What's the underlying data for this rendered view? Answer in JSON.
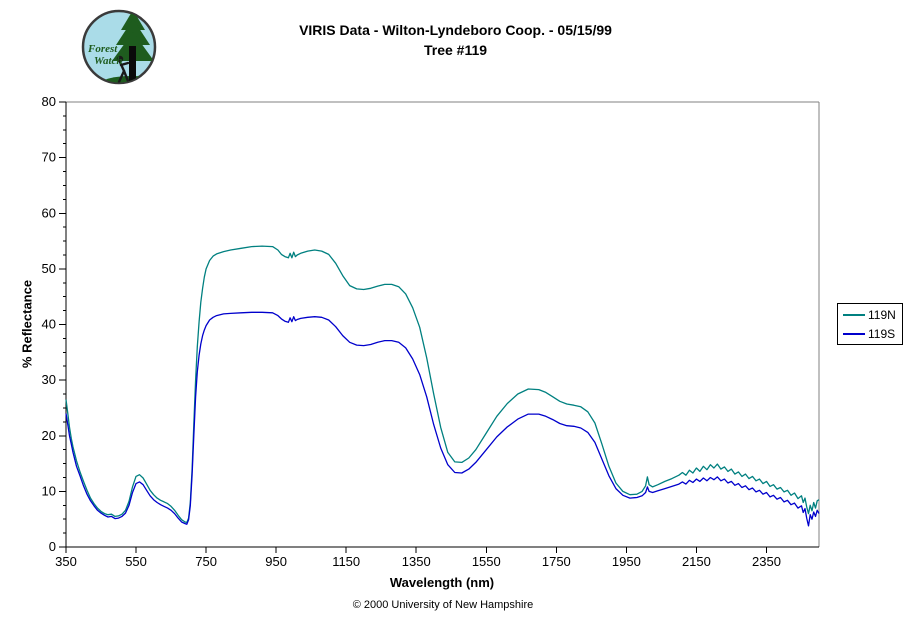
{
  "header": {
    "title_line1": "VIRIS Data - Wilton-Lyndeboro Coop. - 05/15/99",
    "title_line2": "Tree #119",
    "logo": {
      "line1": "Forest",
      "line2": "Watch"
    }
  },
  "footer": {
    "copyright": "© 2000 University of New Hampshire"
  },
  "chart_data": {
    "type": "line",
    "title": "VIRIS Data - Wilton-Lyndeboro Coop. - 05/15/99 — Tree #119",
    "xlabel": "Wavelength (nm)",
    "ylabel": "% Reflectance",
    "xlim": [
      350,
      2500
    ],
    "ylim": [
      0,
      80
    ],
    "x_ticks": [
      350,
      550,
      750,
      950,
      1150,
      1350,
      1550,
      1750,
      1950,
      2150,
      2350
    ],
    "y_ticks": [
      0,
      10,
      20,
      30,
      40,
      50,
      60,
      70,
      80
    ],
    "y_minor_step": 2.5,
    "grid": false,
    "legend_position": "right-outside",
    "axis_color": "#000000",
    "plot_border_color": "#808080",
    "x": [
      350,
      355,
      360,
      365,
      370,
      380,
      390,
      400,
      410,
      420,
      430,
      440,
      450,
      460,
      470,
      480,
      490,
      500,
      510,
      520,
      530,
      540,
      550,
      560,
      570,
      580,
      590,
      600,
      610,
      620,
      630,
      640,
      650,
      660,
      670,
      680,
      690,
      695,
      700,
      705,
      710,
      715,
      720,
      725,
      730,
      735,
      740,
      745,
      750,
      760,
      770,
      780,
      800,
      820,
      850,
      880,
      910,
      940,
      955,
      965,
      975,
      985,
      990,
      995,
      1000,
      1005,
      1010,
      1020,
      1040,
      1060,
      1080,
      1100,
      1120,
      1140,
      1160,
      1180,
      1200,
      1220,
      1240,
      1260,
      1280,
      1300,
      1320,
      1340,
      1360,
      1380,
      1400,
      1420,
      1440,
      1460,
      1480,
      1500,
      1520,
      1550,
      1580,
      1610,
      1640,
      1670,
      1700,
      1720,
      1740,
      1760,
      1780,
      1800,
      1820,
      1840,
      1860,
      1880,
      1900,
      1920,
      1940,
      1960,
      1980,
      1995,
      2005,
      2010,
      2015,
      2025,
      2040,
      2060,
      2080,
      2100,
      2110,
      2120,
      2130,
      2140,
      2150,
      2160,
      2170,
      2180,
      2190,
      2200,
      2210,
      2220,
      2230,
      2240,
      2250,
      2260,
      2270,
      2280,
      2290,
      2300,
      2310,
      2320,
      2330,
      2340,
      2350,
      2360,
      2370,
      2380,
      2390,
      2400,
      2410,
      2420,
      2430,
      2440,
      2450,
      2455,
      2460,
      2465,
      2470,
      2475,
      2480,
      2485,
      2490,
      2495,
      2500
    ],
    "series": [
      {
        "name": "119N",
        "color": "#008080",
        "values": [
          26.5,
          24.0,
          21.5,
          19.5,
          18.0,
          15.5,
          13.5,
          11.8,
          10.2,
          8.8,
          7.8,
          7.0,
          6.4,
          6.0,
          5.8,
          5.9,
          5.5,
          5.6,
          5.9,
          6.6,
          8.2,
          10.8,
          12.7,
          13.0,
          12.4,
          11.3,
          10.2,
          9.4,
          8.8,
          8.4,
          8.1,
          7.8,
          7.3,
          6.6,
          5.7,
          4.9,
          4.5,
          4.4,
          5.2,
          8.0,
          14.0,
          22.0,
          30.0,
          36.0,
          40.5,
          44.0,
          46.5,
          48.5,
          50.0,
          51.5,
          52.3,
          52.7,
          53.1,
          53.4,
          53.7,
          54.0,
          54.1,
          54.0,
          53.4,
          52.6,
          52.2,
          52.0,
          52.8,
          52.0,
          53.0,
          52.2,
          52.5,
          52.8,
          53.2,
          53.4,
          53.2,
          52.6,
          51.0,
          48.8,
          47.0,
          46.4,
          46.3,
          46.5,
          46.9,
          47.2,
          47.2,
          46.8,
          45.5,
          43.0,
          39.5,
          34.0,
          27.5,
          21.5,
          17.0,
          15.3,
          15.2,
          16.0,
          17.5,
          20.5,
          23.5,
          25.8,
          27.5,
          28.4,
          28.3,
          27.8,
          27.0,
          26.2,
          25.7,
          25.5,
          25.2,
          24.3,
          22.3,
          18.5,
          14.5,
          11.5,
          10.0,
          9.4,
          9.5,
          10.0,
          11.0,
          12.6,
          11.2,
          10.8,
          11.2,
          11.8,
          12.3,
          12.9,
          13.4,
          12.9,
          13.8,
          13.3,
          14.2,
          13.6,
          14.5,
          13.9,
          14.8,
          14.2,
          14.9,
          14.0,
          14.4,
          13.6,
          14.0,
          13.1,
          13.5,
          12.7,
          13.1,
          12.3,
          12.7,
          11.9,
          12.2,
          11.4,
          11.8,
          10.9,
          11.2,
          10.4,
          10.7,
          9.9,
          10.2,
          9.3,
          9.7,
          8.7,
          9.2,
          8.0,
          8.8,
          7.2,
          6.0,
          7.5,
          6.5,
          8.0,
          7.0,
          8.3,
          8.5
        ]
      },
      {
        "name": "119S",
        "color": "#0000cc",
        "values": [
          24.0,
          22.0,
          20.0,
          18.5,
          17.0,
          14.5,
          12.8,
          11.0,
          9.5,
          8.3,
          7.4,
          6.6,
          6.1,
          5.7,
          5.4,
          5.5,
          5.1,
          5.2,
          5.5,
          6.1,
          7.5,
          9.8,
          11.4,
          11.7,
          11.2,
          10.2,
          9.2,
          8.5,
          8.0,
          7.6,
          7.3,
          7.0,
          6.6,
          6.0,
          5.2,
          4.5,
          4.2,
          4.1,
          4.9,
          7.4,
          13.0,
          20.0,
          27.0,
          31.5,
          34.5,
          36.5,
          38.0,
          39.0,
          39.8,
          40.8,
          41.3,
          41.6,
          41.9,
          42.0,
          42.1,
          42.2,
          42.2,
          42.1,
          41.6,
          41.0,
          40.6,
          40.4,
          41.2,
          40.5,
          41.4,
          40.7,
          40.9,
          41.1,
          41.3,
          41.4,
          41.3,
          40.8,
          39.6,
          38.0,
          36.8,
          36.3,
          36.2,
          36.4,
          36.8,
          37.1,
          37.1,
          36.8,
          35.8,
          33.8,
          31.0,
          27.0,
          22.0,
          17.8,
          14.8,
          13.4,
          13.3,
          14.0,
          15.2,
          17.5,
          19.8,
          21.6,
          23.0,
          23.9,
          23.9,
          23.5,
          22.9,
          22.2,
          21.8,
          21.7,
          21.4,
          20.6,
          18.8,
          15.8,
          12.8,
          10.5,
          9.3,
          8.8,
          8.9,
          9.2,
          9.8,
          10.8,
          10.0,
          9.8,
          10.1,
          10.5,
          10.9,
          11.3,
          11.7,
          11.3,
          12.0,
          11.6,
          12.2,
          11.8,
          12.4,
          11.9,
          12.5,
          12.1,
          12.6,
          11.9,
          12.2,
          11.5,
          11.8,
          11.1,
          11.4,
          10.7,
          11.0,
          10.3,
          10.6,
          9.9,
          10.2,
          9.5,
          9.8,
          9.0,
          9.3,
          8.6,
          8.9,
          8.1,
          8.4,
          7.6,
          7.9,
          7.0,
          7.4,
          6.2,
          6.9,
          5.2,
          3.8,
          5.8,
          5.0,
          6.3,
          5.5,
          6.6,
          6.0
        ]
      }
    ]
  }
}
